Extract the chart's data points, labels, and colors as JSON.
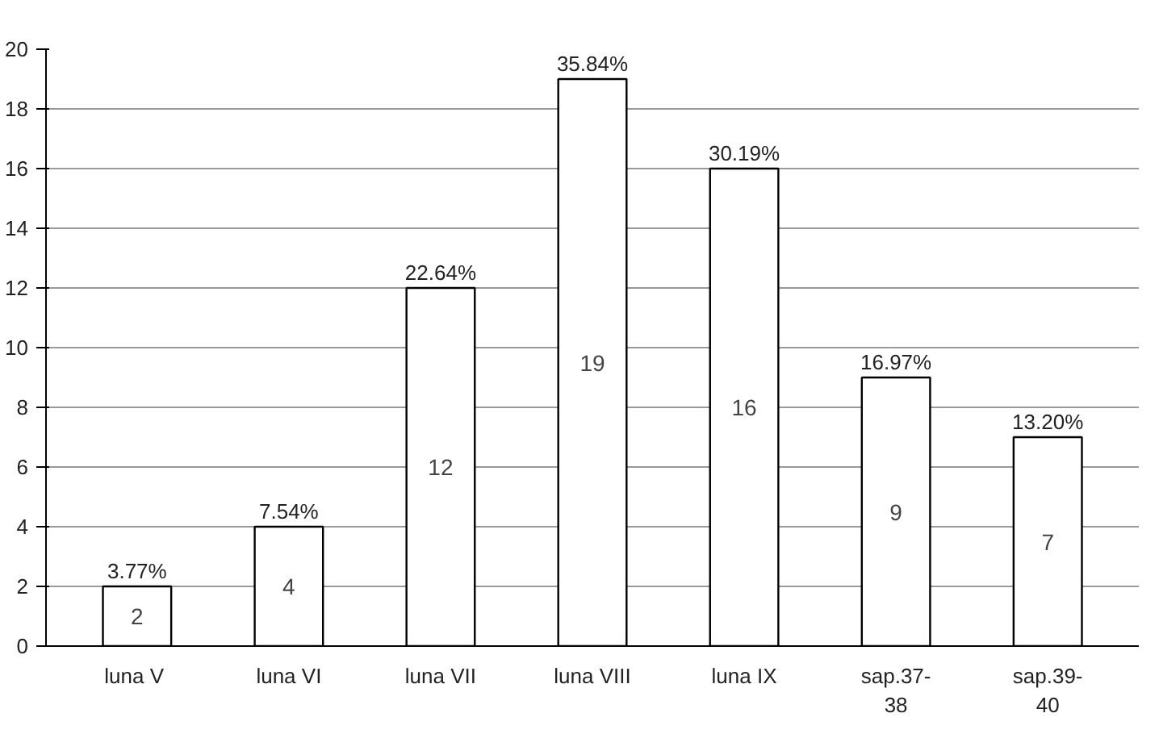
{
  "chart_data": {
    "type": "bar",
    "categories": [
      "luna  V",
      "luna VI",
      "luna VII",
      "luna VIII",
      "luna IX",
      "sap.37-38",
      "sap.39-40"
    ],
    "values": [
      2,
      4,
      12,
      19,
      16,
      9,
      7
    ],
    "color": "#ffffff",
    "ylim": [
      0,
      20
    ],
    "yticks": [
      0,
      2,
      4,
      6,
      8,
      10,
      12,
      14,
      16,
      18,
      20
    ],
    "grid": "y",
    "data_labels": true,
    "annotations": [
      {
        "text": "3.77%",
        "x": "luna  V",
        "y": 2
      },
      {
        "text": "7.54%",
        "x": "luna VI",
        "y": 4
      },
      {
        "text": "22.64%",
        "x": "luna VII",
        "y": 12
      },
      {
        "text": "35.84%",
        "x": "luna VIII",
        "y": 19
      },
      {
        "text": "30.19%",
        "x": "luna IX",
        "y": 16
      },
      {
        "text": "16.97%",
        "x": "sap.37-38",
        "y": 9
      },
      {
        "text": "13.20%",
        "x": "sap.39-40",
        "y": 7
      }
    ]
  }
}
